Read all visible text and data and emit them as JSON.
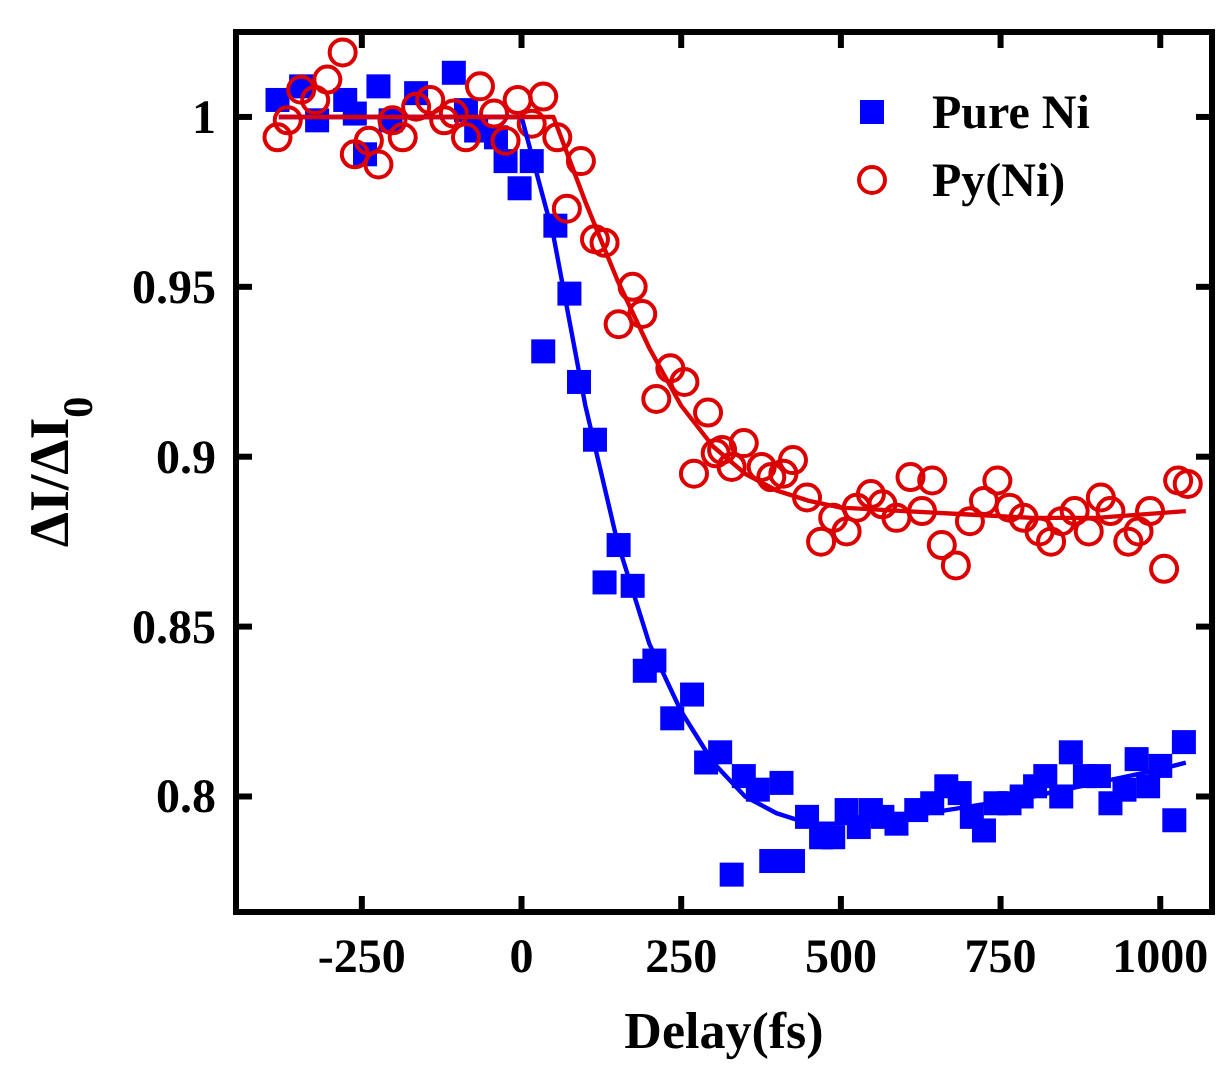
{
  "chart_data": {
    "type": "scatter",
    "xlabel": "Delay(fs)",
    "ylabel": "ΔI/ΔI$_{0}$",
    "xlim": [
      -447,
      1081
    ],
    "ylim": [
      0.766,
      1.025
    ],
    "xticks": [
      -250,
      0,
      250,
      500,
      750,
      1000
    ],
    "yticks": [
      0.8,
      0.85,
      0.9,
      0.95,
      1
    ],
    "grid": false,
    "legend": "top right",
    "series": [
      {
        "name": "Pure Ni",
        "type": "scatter",
        "marker": "square",
        "color": "#0000ff",
        "x": [
          -382,
          -345,
          -320,
          -276,
          -261,
          -224,
          -245,
          -205,
          -165,
          -106,
          -87,
          -71,
          -40,
          -25,
          -3,
          16,
          53,
          75,
          34,
          90,
          115,
          152,
          130,
          174,
          208,
          193,
          267,
          236,
          289,
          311,
          348,
          370,
          407,
          329,
          391,
          425,
          447,
          469,
          488,
          509,
          528,
          547,
          565,
          587,
          618,
          643,
          665,
          686,
          705,
          724,
          742,
          764,
          783,
          804,
          820,
          845,
          860,
          882,
          904,
          922,
          944,
          963,
          981,
          1000,
          1022,
          1037
        ],
        "values": [
          1.005,
          1.009,
          0.999,
          1.005,
          1.001,
          1.009,
          0.989,
          0.999,
          1.007,
          1.013,
          1.002,
          0.996,
          0.994,
          0.987,
          0.979,
          0.987,
          0.968,
          0.948,
          0.931,
          0.922,
          0.905,
          0.874,
          0.863,
          0.862,
          0.84,
          0.837,
          0.83,
          0.823,
          0.81,
          0.813,
          0.806,
          0.802,
          0.804,
          0.777,
          0.781,
          0.781,
          0.794,
          0.788,
          0.788,
          0.796,
          0.791,
          0.796,
          0.794,
          0.792,
          0.796,
          0.798,
          0.803,
          0.801,
          0.794,
          0.79,
          0.798,
          0.798,
          0.8,
          0.803,
          0.806,
          0.8,
          0.813,
          0.806,
          0.806,
          0.798,
          0.802,
          0.811,
          0.803,
          0.809,
          0.793,
          0.816
        ]
      },
      {
        "name": "Py(Ni)",
        "type": "scatter",
        "marker": "circle",
        "color": "#dd0000",
        "x": [
          -382,
          -366,
          -345,
          -323,
          -304,
          -280,
          -261,
          -239,
          -224,
          -202,
          -186,
          -165,
          -143,
          -121,
          -106,
          -87,
          -65,
          -43,
          -25,
          -6,
          16,
          34,
          56,
          93,
          71,
          115,
          130,
          174,
          152,
          189,
          233,
          255,
          211,
          292,
          270,
          304,
          314,
          348,
          329,
          376,
          391,
          410,
          425,
          447,
          469,
          488,
          509,
          525,
          547,
          565,
          587,
          609,
          627,
          643,
          658,
          680,
          702,
          724,
          745,
          764,
          786,
          811,
          829,
          845,
          866,
          888,
          907,
          922,
          950,
          966,
          984,
          1006,
          1028,
          1043
        ],
        "values": [
          0.994,
          0.999,
          1.008,
          1.005,
          1.011,
          1.019,
          0.989,
          0.993,
          0.986,
          0.999,
          0.994,
          1.003,
          1.005,
          0.999,
          1.001,
          0.994,
          1.009,
          1.001,
          0.993,
          1.005,
          0.998,
          1.006,
          0.994,
          0.987,
          0.973,
          0.964,
          0.963,
          0.95,
          0.939,
          0.942,
          0.926,
          0.922,
          0.917,
          0.913,
          0.895,
          0.901,
          0.902,
          0.904,
          0.897,
          0.897,
          0.894,
          0.895,
          0.899,
          0.888,
          0.875,
          0.882,
          0.878,
          0.885,
          0.889,
          0.886,
          0.882,
          0.894,
          0.884,
          0.893,
          0.874,
          0.868,
          0.881,
          0.887,
          0.893,
          0.885,
          0.882,
          0.878,
          0.875,
          0.881,
          0.884,
          0.878,
          0.888,
          0.884,
          0.875,
          0.878,
          0.884,
          0.867,
          0.893,
          0.892
        ]
      },
      {
        "type": "line",
        "marker": "none",
        "color": "#0000ff",
        "x": [
          -380,
          0,
          50,
          100,
          150,
          200,
          250,
          300,
          350,
          400,
          450,
          500,
          600,
          700,
          800,
          900,
          1000,
          1040
        ],
        "values": [
          1.0,
          1.0,
          0.965,
          0.915,
          0.875,
          0.845,
          0.825,
          0.81,
          0.8,
          0.795,
          0.792,
          0.792,
          0.794,
          0.797,
          0.8,
          0.804,
          0.808,
          0.81
        ]
      },
      {
        "type": "line",
        "marker": "none",
        "color": "#dd0000",
        "x": [
          -380,
          50,
          100,
          150,
          200,
          250,
          300,
          350,
          400,
          450,
          500,
          600,
          700,
          800,
          900,
          1040
        ],
        "values": [
          1.0,
          1.0,
          0.975,
          0.952,
          0.932,
          0.915,
          0.903,
          0.895,
          0.89,
          0.887,
          0.885,
          0.884,
          0.883,
          0.882,
          0.882,
          0.884
        ]
      }
    ]
  }
}
